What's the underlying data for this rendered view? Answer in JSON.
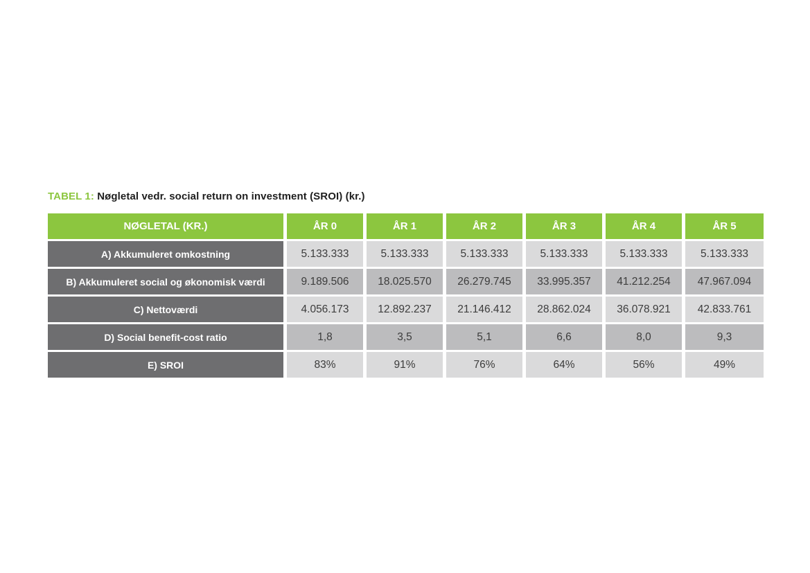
{
  "caption": {
    "prefix": "TABEL 1:",
    "title": "Nøgletal vedr. social return on investment (SROI) (kr.)"
  },
  "table": {
    "headers": [
      "NØGLETAL (KR.)",
      "ÅR 0",
      "ÅR 1",
      "ÅR 2",
      "ÅR 3",
      "ÅR 4",
      "ÅR 5"
    ],
    "rows": [
      {
        "label": "A) Akkumuleret omkostning",
        "values": [
          "5.133.333",
          "5.133.333",
          "5.133.333",
          "5.133.333",
          "5.133.333",
          "5.133.333"
        ]
      },
      {
        "label": "B) Akkumuleret social og økonomisk værdi",
        "values": [
          "9.189.506",
          "18.025.570",
          "26.279.745",
          "33.995.357",
          "41.212.254",
          "47.967.094"
        ]
      },
      {
        "label": "C) Nettoværdi",
        "values": [
          "4.056.173",
          "12.892.237",
          "21.146.412",
          "28.862.024",
          "36.078.921",
          "42.833.761"
        ]
      },
      {
        "label": "D) Social benefit-cost ratio",
        "values": [
          "1,8",
          "3,5",
          "5,1",
          "6,6",
          "8,0",
          "9,3"
        ]
      },
      {
        "label": "E) SROI",
        "values": [
          "83%",
          "91%",
          "76%",
          "64%",
          "56%",
          "49%"
        ]
      }
    ]
  },
  "colors": {
    "header_green": "#8cc63f",
    "label_gray": "#6e6e70",
    "cell_light": "#dadadb",
    "cell_dark": "#bcbcbe"
  }
}
